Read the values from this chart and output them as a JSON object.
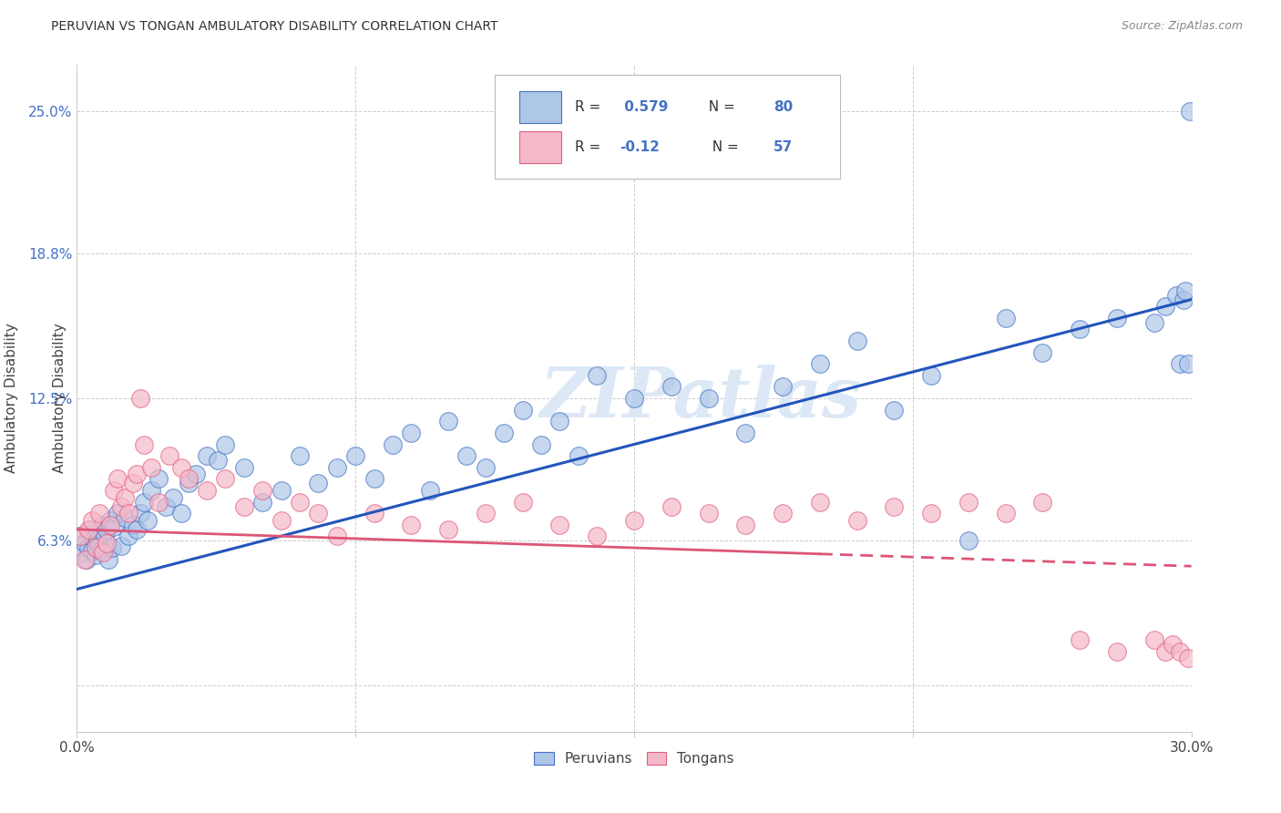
{
  "title": "PERUVIAN VS TONGAN AMBULATORY DISABILITY CORRELATION CHART",
  "source": "Source: ZipAtlas.com",
  "ylabel": "Ambulatory Disability",
  "xlim": [
    0.0,
    30.0
  ],
  "ylim": [
    -2.0,
    27.0
  ],
  "ytick_positions": [
    0.0,
    6.3,
    12.5,
    18.8,
    25.0
  ],
  "ytick_labels": [
    "",
    "6.3%",
    "12.5%",
    "18.8%",
    "25.0%"
  ],
  "xtick_positions": [
    0.0,
    7.5,
    15.0,
    22.5,
    30.0
  ],
  "xtick_labels": [
    "0.0%",
    "",
    "",
    "",
    "30.0%"
  ],
  "peruvian_color": "#aec6e8",
  "tongan_color": "#f5b8c8",
  "peruvian_edge_color": "#4472c4",
  "tongan_edge_color": "#e06080",
  "peruvian_line_color": "#2255bb",
  "tongan_line_color": "#dd5577",
  "peruvian_R": 0.579,
  "peruvian_N": 80,
  "tongan_R": -0.12,
  "tongan_N": 57,
  "watermark": "ZIPatlas",
  "background_color": "#ffffff",
  "grid_color": "#cccccc",
  "peruvian_x": [
    0.1,
    0.15,
    0.2,
    0.25,
    0.3,
    0.35,
    0.4,
    0.45,
    0.5,
    0.55,
    0.6,
    0.65,
    0.7,
    0.75,
    0.8,
    0.85,
    0.9,
    0.95,
    1.0,
    1.1,
    1.2,
    1.3,
    1.4,
    1.5,
    1.6,
    1.7,
    1.8,
    1.9,
    2.0,
    2.2,
    2.4,
    2.6,
    2.8,
    3.0,
    3.2,
    3.5,
    3.8,
    4.0,
    4.5,
    5.0,
    5.5,
    6.0,
    6.5,
    7.0,
    7.5,
    8.0,
    8.5,
    9.0,
    9.5,
    10.0,
    10.5,
    11.0,
    11.5,
    12.0,
    12.5,
    13.0,
    13.5,
    14.0,
    15.0,
    16.0,
    17.0,
    18.0,
    19.0,
    20.0,
    21.0,
    22.0,
    23.0,
    24.0,
    25.0,
    26.0,
    27.0,
    28.0,
    29.0,
    29.3,
    29.6,
    29.7,
    29.8,
    29.85,
    29.9,
    29.95
  ],
  "peruvian_y": [
    6.5,
    5.8,
    6.2,
    5.5,
    6.0,
    6.8,
    5.9,
    6.4,
    5.7,
    6.3,
    6.1,
    5.9,
    7.0,
    6.5,
    6.8,
    5.5,
    7.2,
    6.0,
    6.9,
    7.5,
    6.1,
    7.3,
    6.5,
    7.0,
    6.8,
    7.5,
    8.0,
    7.2,
    8.5,
    9.0,
    7.8,
    8.2,
    7.5,
    8.8,
    9.2,
    10.0,
    9.8,
    10.5,
    9.5,
    8.0,
    8.5,
    10.0,
    8.8,
    9.5,
    10.0,
    9.0,
    10.5,
    11.0,
    8.5,
    11.5,
    10.0,
    9.5,
    11.0,
    12.0,
    10.5,
    11.5,
    10.0,
    13.5,
    12.5,
    13.0,
    12.5,
    11.0,
    13.0,
    14.0,
    15.0,
    12.0,
    13.5,
    6.3,
    16.0,
    14.5,
    15.5,
    16.0,
    15.8,
    16.5,
    17.0,
    14.0,
    16.8,
    17.2,
    14.0,
    25.0
  ],
  "tongan_x": [
    0.1,
    0.2,
    0.3,
    0.4,
    0.5,
    0.6,
    0.7,
    0.8,
    0.9,
    1.0,
    1.1,
    1.2,
    1.3,
    1.4,
    1.5,
    1.6,
    1.7,
    1.8,
    2.0,
    2.2,
    2.5,
    2.8,
    3.0,
    3.5,
    4.0,
    4.5,
    5.0,
    5.5,
    6.0,
    6.5,
    7.0,
    8.0,
    9.0,
    10.0,
    11.0,
    12.0,
    13.0,
    14.0,
    15.0,
    16.0,
    17.0,
    18.0,
    19.0,
    20.0,
    21.0,
    22.0,
    23.0,
    24.0,
    25.0,
    26.0,
    27.0,
    28.0,
    29.0,
    29.3,
    29.5,
    29.7,
    29.9
  ],
  "tongan_y": [
    6.5,
    5.5,
    6.8,
    7.2,
    6.0,
    7.5,
    5.8,
    6.2,
    7.0,
    8.5,
    9.0,
    7.8,
    8.2,
    7.5,
    8.8,
    9.2,
    12.5,
    10.5,
    9.5,
    8.0,
    10.0,
    9.5,
    9.0,
    8.5,
    9.0,
    7.8,
    8.5,
    7.2,
    8.0,
    7.5,
    6.5,
    7.5,
    7.0,
    6.8,
    7.5,
    8.0,
    7.0,
    6.5,
    7.2,
    7.8,
    7.5,
    7.0,
    7.5,
    8.0,
    7.2,
    7.8,
    7.5,
    8.0,
    7.5,
    8.0,
    2.0,
    1.5,
    2.0,
    1.5,
    1.8,
    1.5,
    1.2
  ],
  "tongan_dash_start_x": 20.0,
  "peru_line_y0": 4.2,
  "peru_line_y1": 16.8,
  "tong_line_y0": 6.8,
  "tong_line_y1": 5.2,
  "tong_solid_end": 20.0
}
